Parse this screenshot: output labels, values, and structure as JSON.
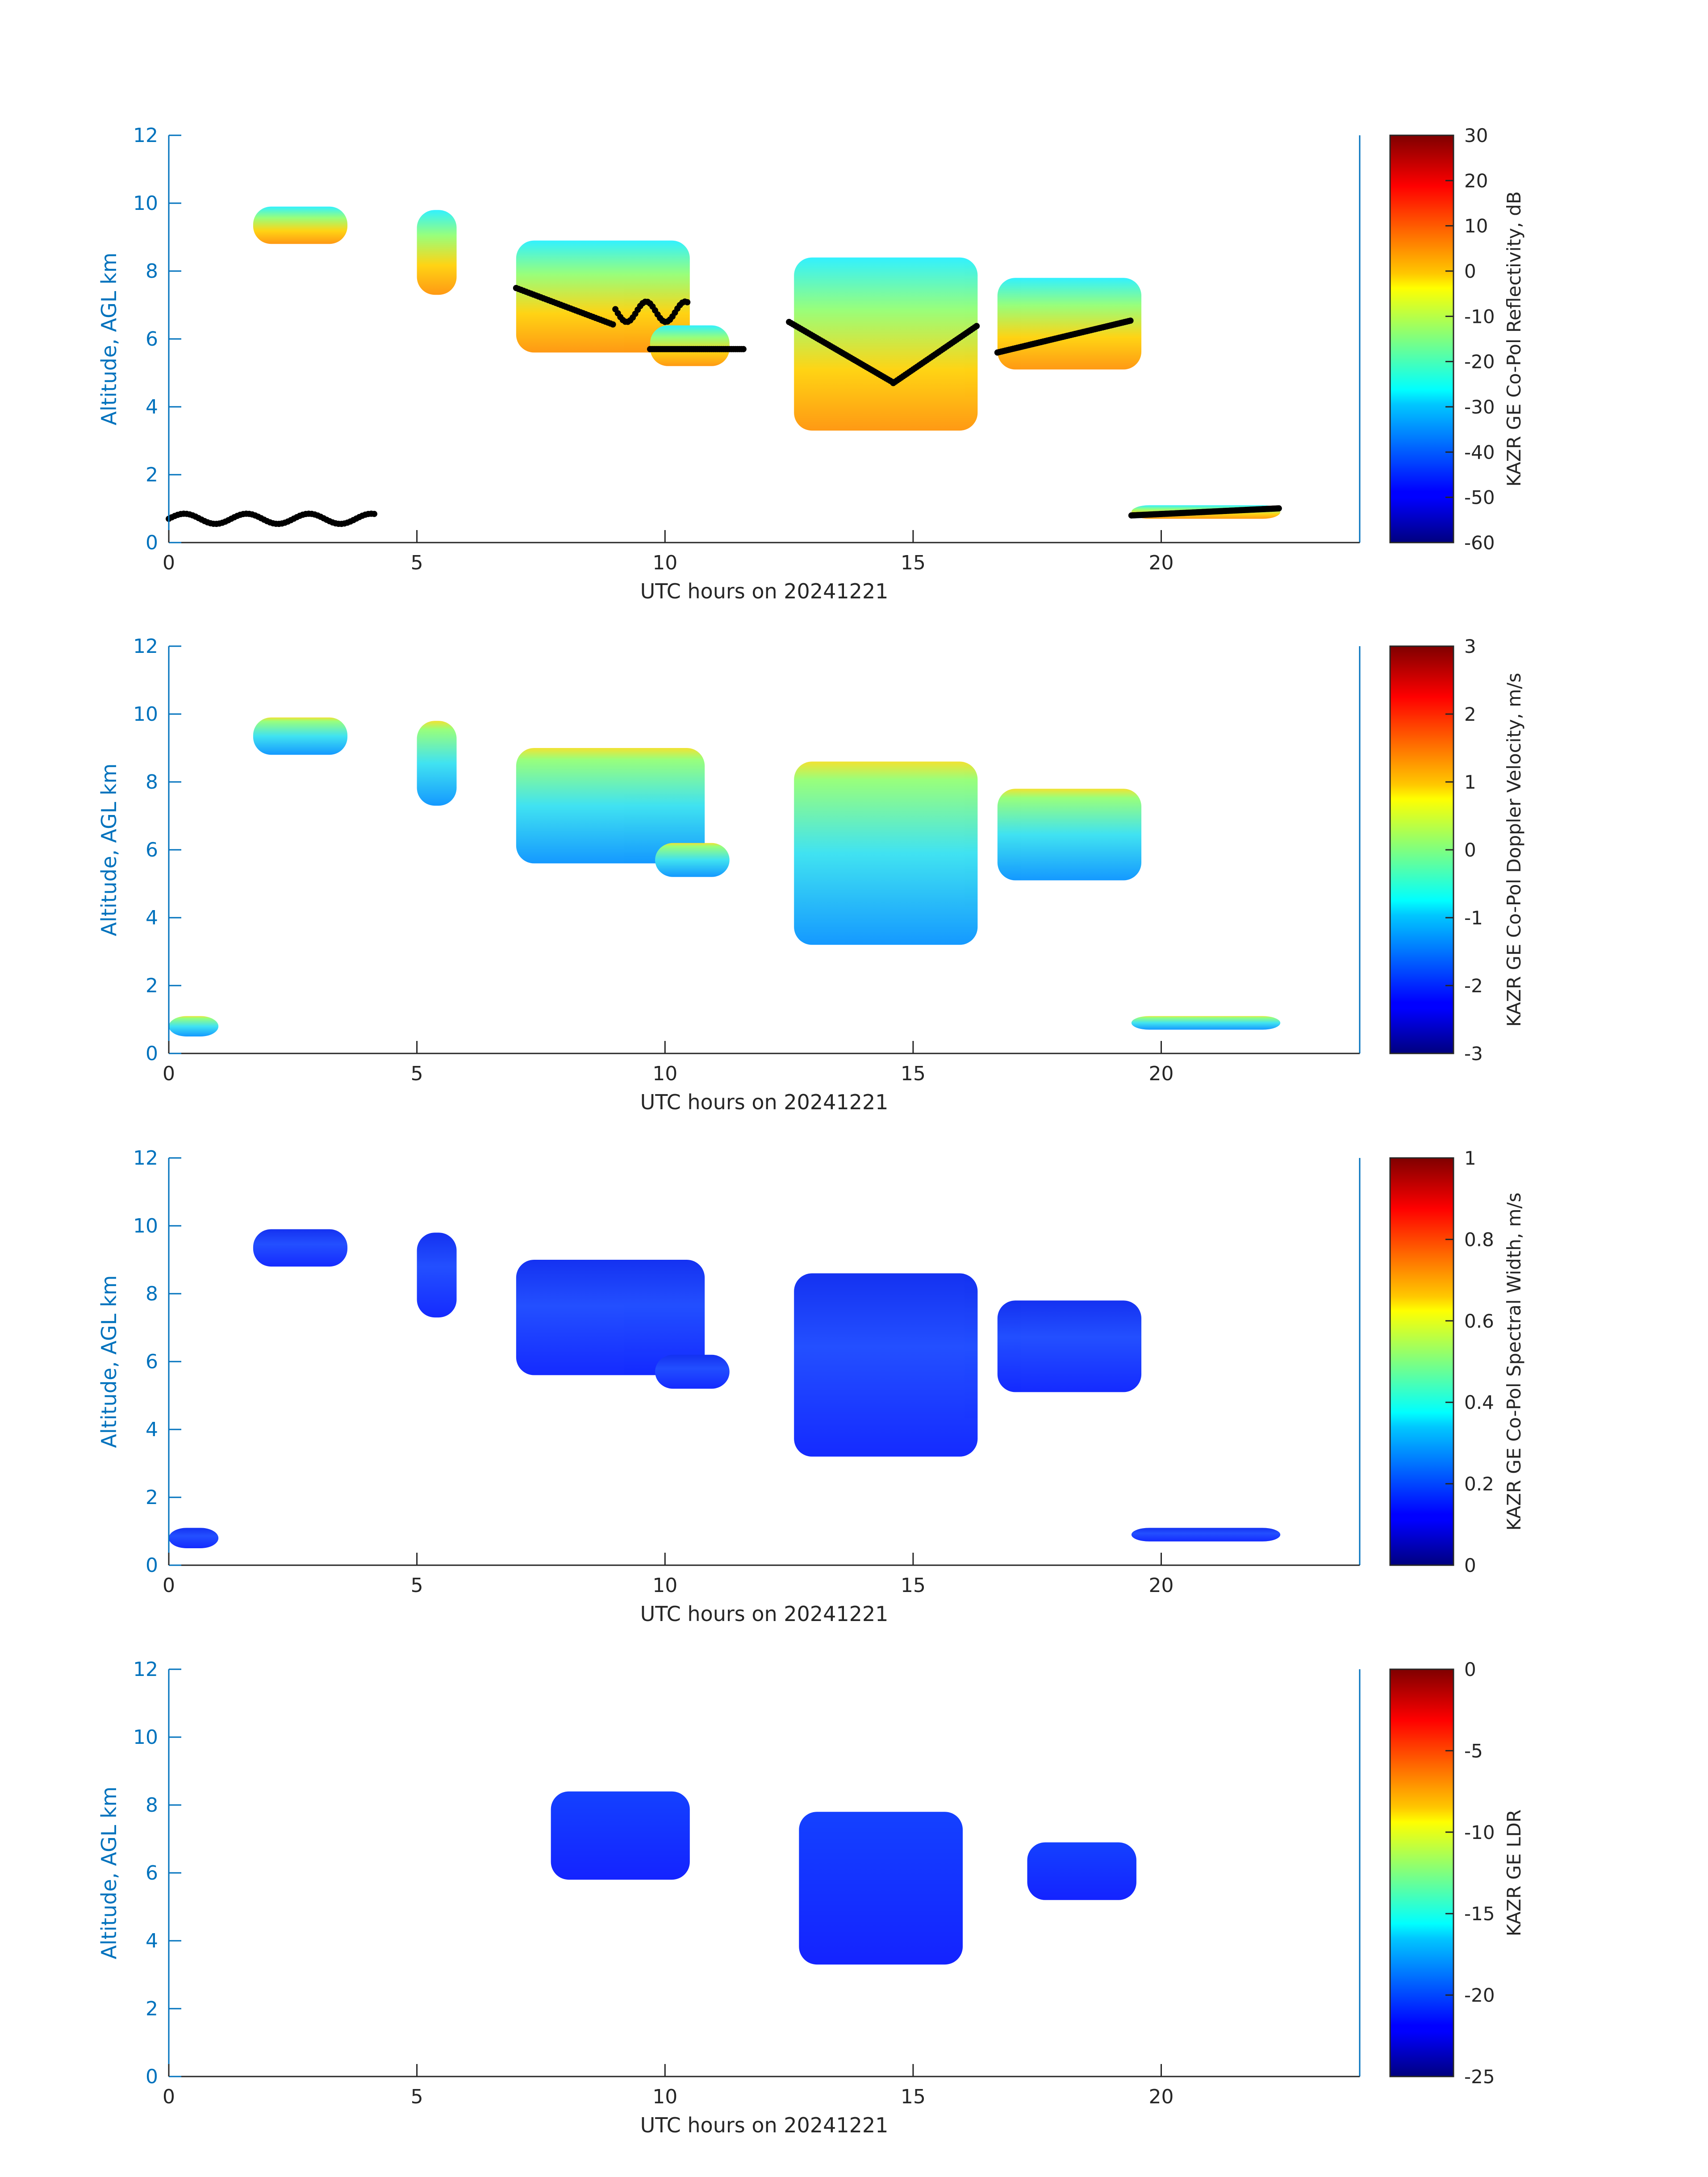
{
  "figure": {
    "date_label": "UTC hours on 20241221",
    "ylabel": "Altitude, AGL km"
  },
  "chart_data": [
    {
      "type": "heatmap",
      "variable": "KAZR GE Co-Pol Reflectivity, dB",
      "xlabel": "UTC hours on 20241221",
      "ylabel": "Altitude, AGL km",
      "xlim": [
        0,
        24
      ],
      "ylim": [
        0,
        12
      ],
      "xticks": [
        0,
        5,
        10,
        15,
        20
      ],
      "yticks": [
        0,
        2,
        4,
        6,
        8,
        10,
        12
      ],
      "colorbar": {
        "label": "KAZR GE Co-Pol Reflectivity, dB",
        "range": [
          -60,
          30
        ],
        "ticks": [
          -60,
          -50,
          -40,
          -30,
          -20,
          -10,
          0,
          10,
          20,
          30
        ],
        "colormap": "jet"
      },
      "has_overlay_points": true,
      "overlay_color": "#000000"
    },
    {
      "type": "heatmap",
      "variable": "KAZR GE Co-Pol Doppler Velocity, m/s",
      "xlabel": "UTC hours on 20241221",
      "ylabel": "Altitude, AGL km",
      "xlim": [
        0,
        24
      ],
      "ylim": [
        0,
        12
      ],
      "xticks": [
        0,
        5,
        10,
        15,
        20
      ],
      "yticks": [
        0,
        2,
        4,
        6,
        8,
        10,
        12
      ],
      "colorbar": {
        "label": "KAZR GE Co-Pol Doppler Velocity, m/s",
        "range": [
          -3,
          3
        ],
        "ticks": [
          -3,
          -2,
          -1,
          0,
          1,
          2,
          3
        ],
        "colormap": "jet"
      }
    },
    {
      "type": "heatmap",
      "variable": "KAZR GE Co-Pol Spectral Width, m/s",
      "xlabel": "UTC hours on 20241221",
      "ylabel": "Altitude, AGL km",
      "xlim": [
        0,
        24
      ],
      "ylim": [
        0,
        12
      ],
      "xticks": [
        0,
        5,
        10,
        15,
        20
      ],
      "yticks": [
        0,
        2,
        4,
        6,
        8,
        10,
        12
      ],
      "colorbar": {
        "label": "KAZR GE Co-Pol Spectral Width, m/s",
        "range": [
          0,
          1
        ],
        "ticks": [
          0,
          0.2,
          0.4,
          0.6,
          0.8,
          1
        ],
        "colormap": "jet"
      }
    },
    {
      "type": "heatmap",
      "variable": "KAZR GE LDR",
      "xlabel": "UTC hours on 20241221",
      "ylabel": "Altitude, AGL km",
      "xlim": [
        0,
        24
      ],
      "ylim": [
        0,
        12
      ],
      "xticks": [
        0,
        5,
        10,
        15,
        20
      ],
      "yticks": [
        0,
        2,
        4,
        6,
        8,
        10,
        12
      ],
      "colorbar": {
        "label": "KAZR GE LDR",
        "range": [
          -25,
          0
        ],
        "ticks": [
          -25,
          -20,
          -15,
          -10,
          -5,
          0
        ],
        "colormap": "jet"
      }
    }
  ],
  "colors": {
    "axis_blue": "#0072bd",
    "axis_dark": "#262626",
    "overlay": "#000000"
  }
}
